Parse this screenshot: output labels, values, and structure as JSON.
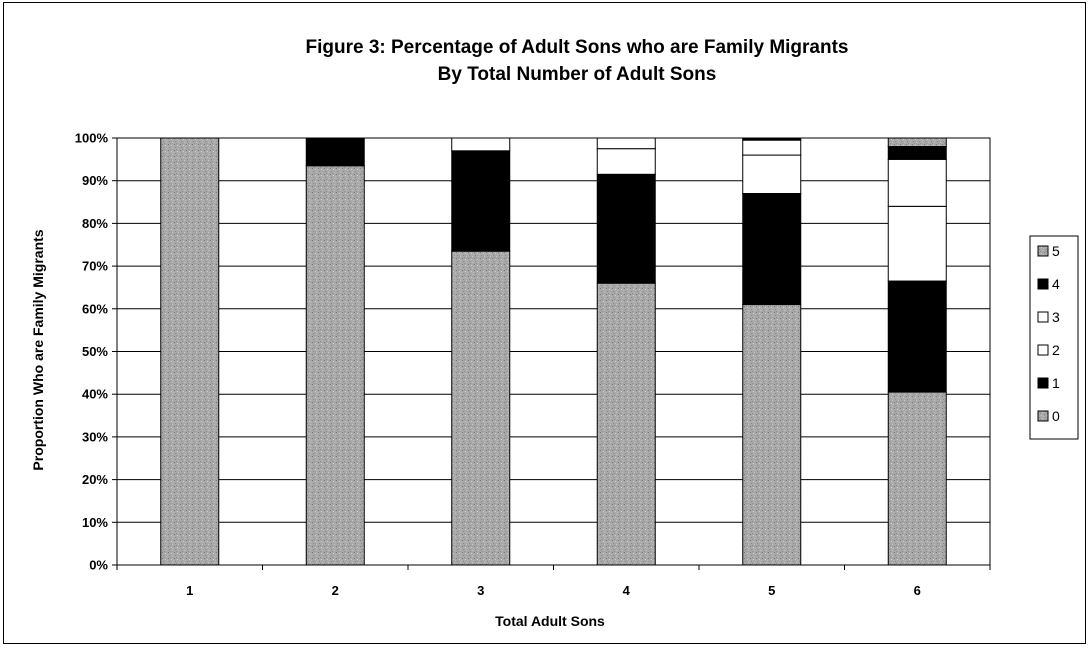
{
  "chart_data": {
    "type": "bar",
    "stacked": true,
    "normalized": true,
    "title": "Figure 3: Percentage of Adult Sons who are Family Migrants",
    "subtitle": "By Total Number of Adult Sons",
    "xlabel": "Total Adult Sons",
    "ylabel": "Proportion Who are Family Migrants",
    "ylim": [
      0,
      100
    ],
    "yticks": [
      "0%",
      "10%",
      "20%",
      "30%",
      "40%",
      "50%",
      "60%",
      "70%",
      "80%",
      "90%",
      "100%"
    ],
    "categories": [
      "1",
      "2",
      "3",
      "4",
      "5",
      "6"
    ],
    "series": [
      {
        "name": "0",
        "color": "#a8a8a8",
        "values": [
          100,
          93.5,
          73.5,
          66,
          61,
          40.5
        ]
      },
      {
        "name": "1",
        "color": "#000000",
        "values": [
          0,
          6.5,
          23.5,
          25.5,
          26,
          26
        ]
      },
      {
        "name": "2",
        "color": "#ffffff",
        "values": [
          0,
          0,
          3,
          6,
          9,
          17.5
        ]
      },
      {
        "name": "3",
        "color": "#ffffff",
        "values": [
          0,
          0,
          0,
          2.5,
          3.5,
          11
        ]
      },
      {
        "name": "4",
        "color": "#000000",
        "values": [
          0,
          0,
          0,
          0,
          0.5,
          3
        ]
      },
      {
        "name": "5",
        "color": "#a8a8a8",
        "values": [
          0,
          0,
          0,
          0,
          0,
          2
        ]
      }
    ],
    "legend": {
      "position": "right",
      "entries": [
        "5",
        "4",
        "3",
        "2",
        "1",
        "0"
      ]
    },
    "grid": true
  }
}
